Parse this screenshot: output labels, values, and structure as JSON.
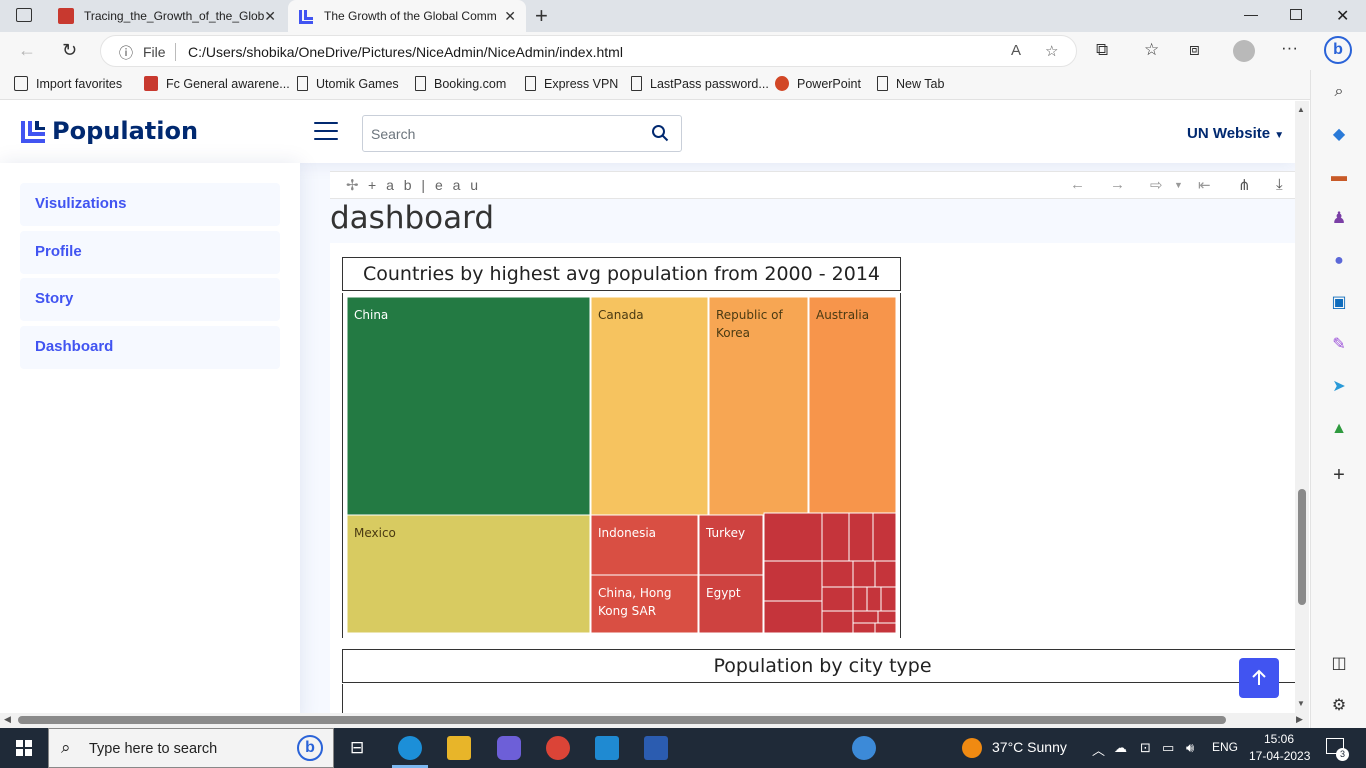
{
  "browser": {
    "tabs": [
      {
        "title": "Tracing_the_Growth_of_the_Glob",
        "active": false
      },
      {
        "title": "The Growth of the Global Comm",
        "active": true
      }
    ],
    "address": {
      "scheme_label": "File",
      "url": "C:/Users/shobika/OneDrive/Pictures/NiceAdmin/NiceAdmin/index.html"
    },
    "favorites": [
      "Import favorites",
      "Fc General awarene...",
      "Utomik Games",
      "Booking.com",
      "Express VPN",
      "LastPass password...",
      "PowerPoint",
      "New Tab"
    ]
  },
  "header": {
    "brand": "Population",
    "search_placeholder": "Search",
    "nav_right": "UN Website"
  },
  "sidebar": {
    "items": [
      {
        "label": "Visulizations"
      },
      {
        "label": "Profile"
      },
      {
        "label": "Story"
      },
      {
        "label": "Dashboard"
      }
    ]
  },
  "tableau": {
    "logo_text": "+ a b | e a u",
    "dashboard_title": "dashboard"
  },
  "chart_data": [
    {
      "type": "treemap",
      "title": "Countries by highest avg population from 2000 - 2014",
      "labeled_cells": [
        {
          "label": "China",
          "color": "#237a43"
        },
        {
          "label": "Mexico",
          "color": "#d8cb61"
        },
        {
          "label": "Canada",
          "color": "#f6c35f"
        },
        {
          "label": "Republic of Korea",
          "color": "#f7a653"
        },
        {
          "label": "Australia",
          "color": "#f7954b"
        },
        {
          "label": "Indonesia",
          "color": "#d94f43"
        },
        {
          "label": "China, Hong Kong SAR",
          "color": "#d94f43"
        },
        {
          "label": "Turkey",
          "color": "#ce4240"
        },
        {
          "label": "Egypt",
          "color": "#ce4240"
        }
      ],
      "unlabeled_color": "#c5343b"
    },
    {
      "type": "other",
      "title": "Population by city type"
    }
  ],
  "taskbar": {
    "search_placeholder": "Type here to search",
    "weather": "37°C  Sunny",
    "language": "ENG",
    "time": "15:06",
    "date": "17-04-2023",
    "notifications": "3"
  }
}
